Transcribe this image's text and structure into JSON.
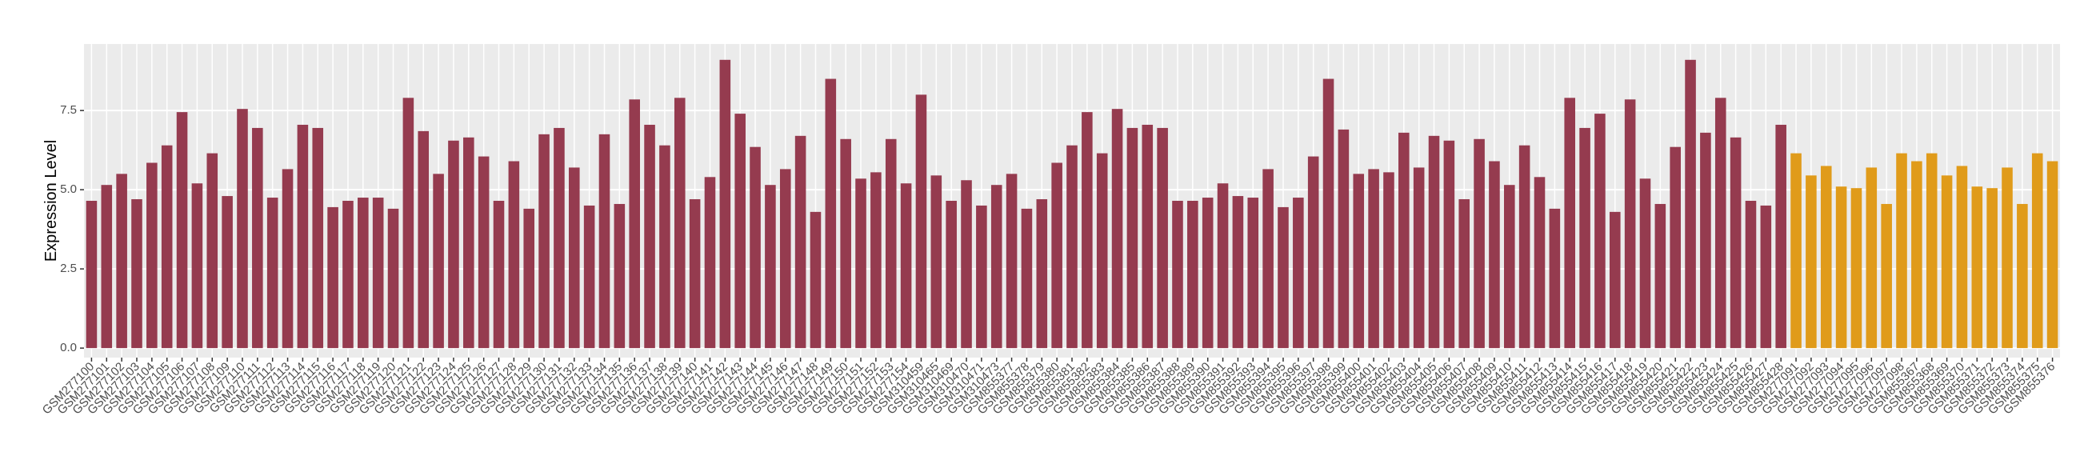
{
  "chart_data": {
    "type": "bar",
    "y_label": "Expression Level",
    "categories": [
      "GSM277100",
      "GSM277101",
      "GSM277102",
      "GSM277103",
      "GSM277104",
      "GSM277105",
      "GSM277106",
      "GSM277107",
      "GSM277108",
      "GSM277109",
      "GSM277110",
      "GSM277111",
      "GSM277112",
      "GSM277113",
      "GSM277114",
      "GSM277115",
      "GSM277116",
      "GSM277117",
      "GSM277118",
      "GSM277119",
      "GSM277120",
      "GSM277121",
      "GSM277122",
      "GSM277123",
      "GSM277124",
      "GSM277125",
      "GSM277126",
      "GSM277127",
      "GSM277128",
      "GSM277129",
      "GSM277130",
      "GSM277131",
      "GSM277132",
      "GSM277133",
      "GSM277134",
      "GSM277135",
      "GSM277136",
      "GSM277137",
      "GSM277138",
      "GSM277139",
      "GSM277140",
      "GSM277141",
      "GSM277142",
      "GSM277143",
      "GSM277144",
      "GSM277145",
      "GSM277146",
      "GSM277147",
      "GSM277148",
      "GSM277149",
      "GSM277150",
      "GSM277151",
      "GSM277152",
      "GSM277153",
      "GSM277154",
      "GSM310459",
      "GSM310465",
      "GSM310469",
      "GSM310470",
      "GSM310471",
      "GSM310473",
      "GSM855377",
      "GSM855378",
      "GSM855379",
      "GSM855380",
      "GSM855381",
      "GSM855382",
      "GSM855383",
      "GSM855384",
      "GSM855385",
      "GSM855386",
      "GSM855387",
      "GSM855388",
      "GSM855389",
      "GSM855390",
      "GSM855391",
      "GSM855392",
      "GSM855393",
      "GSM855394",
      "GSM855395",
      "GSM855396",
      "GSM855397",
      "GSM855398",
      "GSM855399",
      "GSM855400",
      "GSM855401",
      "GSM855402",
      "GSM855403",
      "GSM855404",
      "GSM855405",
      "GSM855406",
      "GSM855407",
      "GSM855408",
      "GSM855409",
      "GSM855410",
      "GSM855411",
      "GSM855412",
      "GSM855413",
      "GSM855414",
      "GSM855415",
      "GSM855416",
      "GSM855417",
      "GSM855418",
      "GSM855419",
      "GSM855420",
      "GSM855421",
      "GSM855422",
      "GSM855423",
      "GSM855424",
      "GSM855425",
      "GSM855426",
      "GSM855427",
      "GSM855428",
      "GSM277091",
      "GSM277092",
      "GSM277093",
      "GSM277094",
      "GSM277095",
      "GSM277096",
      "GSM277097",
      "GSM277098",
      "GSM855367",
      "GSM855368",
      "GSM855369",
      "GSM855370",
      "GSM855371",
      "GSM855372",
      "GSM855373",
      "GSM855374",
      "GSM855375",
      "GSM855376"
    ],
    "values": [
      4.65,
      5.15,
      5.5,
      4.7,
      5.85,
      6.4,
      7.45,
      5.2,
      6.15,
      4.8,
      7.55,
      6.95,
      4.75,
      5.65,
      7.05,
      6.95,
      4.45,
      4.65,
      4.75,
      4.75,
      4.4,
      7.9,
      6.85,
      5.5,
      6.55,
      6.65,
      6.05,
      4.65,
      5.9,
      4.4,
      6.75,
      6.95,
      5.7,
      4.5,
      6.75,
      4.55,
      7.85,
      7.05,
      6.4,
      7.9,
      4.7,
      5.4,
      9.1,
      7.4,
      6.35,
      5.15,
      5.65,
      6.7,
      4.3,
      8.5,
      6.6,
      5.35,
      5.55,
      6.6,
      5.2,
      8.0,
      5.45,
      4.65,
      5.3,
      4.5,
      5.15,
      5.5,
      4.4,
      4.7,
      5.85,
      6.4,
      7.45,
      6.15,
      7.55,
      6.95,
      7.05,
      6.95,
      4.65,
      4.65,
      4.75,
      5.2,
      4.8,
      4.75,
      5.65,
      4.45,
      4.75,
      6.05,
      8.5,
      6.9,
      5.5,
      5.65,
      5.55,
      6.8,
      5.7,
      6.7,
      6.55,
      4.7,
      6.6,
      5.9,
      5.15,
      6.4,
      5.4,
      4.4,
      7.9,
      6.95,
      7.4,
      4.3,
      7.85,
      5.35,
      4.55,
      6.35,
      9.1,
      6.8,
      7.9,
      6.65,
      4.65,
      4.5,
      7.05,
      6.15,
      5.45,
      5.75,
      5.1,
      5.05,
      5.7,
      4.55,
      6.15,
      5.9,
      6.15,
      5.45,
      5.75,
      5.1,
      5.05,
      5.7,
      4.55,
      6.15,
      5.9
    ],
    "colors": [
      "#953b4f",
      "#953b4f",
      "#953b4f",
      "#953b4f",
      "#953b4f",
      "#953b4f",
      "#953b4f",
      "#953b4f",
      "#953b4f",
      "#953b4f",
      "#953b4f",
      "#953b4f",
      "#953b4f",
      "#953b4f",
      "#953b4f",
      "#953b4f",
      "#953b4f",
      "#953b4f",
      "#953b4f",
      "#953b4f",
      "#953b4f",
      "#953b4f",
      "#953b4f",
      "#953b4f",
      "#953b4f",
      "#953b4f",
      "#953b4f",
      "#953b4f",
      "#953b4f",
      "#953b4f",
      "#953b4f",
      "#953b4f",
      "#953b4f",
      "#953b4f",
      "#953b4f",
      "#953b4f",
      "#953b4f",
      "#953b4f",
      "#953b4f",
      "#953b4f",
      "#953b4f",
      "#953b4f",
      "#953b4f",
      "#953b4f",
      "#953b4f",
      "#953b4f",
      "#953b4f",
      "#953b4f",
      "#953b4f",
      "#953b4f",
      "#953b4f",
      "#953b4f",
      "#953b4f",
      "#953b4f",
      "#953b4f",
      "#953b4f",
      "#953b4f",
      "#953b4f",
      "#953b4f",
      "#953b4f",
      "#953b4f",
      "#953b4f",
      "#953b4f",
      "#953b4f",
      "#953b4f",
      "#953b4f",
      "#953b4f",
      "#953b4f",
      "#953b4f",
      "#953b4f",
      "#953b4f",
      "#953b4f",
      "#953b4f",
      "#953b4f",
      "#953b4f",
      "#953b4f",
      "#953b4f",
      "#953b4f",
      "#953b4f",
      "#953b4f",
      "#953b4f",
      "#953b4f",
      "#953b4f",
      "#953b4f",
      "#953b4f",
      "#953b4f",
      "#953b4f",
      "#953b4f",
      "#953b4f",
      "#953b4f",
      "#953b4f",
      "#953b4f",
      "#953b4f",
      "#953b4f",
      "#953b4f",
      "#953b4f",
      "#953b4f",
      "#953b4f",
      "#953b4f",
      "#953b4f",
      "#953b4f",
      "#953b4f",
      "#953b4f",
      "#953b4f",
      "#953b4f",
      "#953b4f",
      "#953b4f",
      "#953b4f",
      "#953b4f",
      "#953b4f",
      "#953b4f",
      "#953b4f",
      "#953b4f",
      "#e09b1a",
      "#e09b1a",
      "#e09b1a",
      "#e09b1a",
      "#e09b1a",
      "#e09b1a",
      "#e09b1a",
      "#e09b1a",
      "#e09b1a",
      "#e09b1a",
      "#e09b1a",
      "#e09b1a",
      "#e09b1a",
      "#e09b1a",
      "#e09b1a",
      "#e09b1a",
      "#e09b1a",
      "#e09b1a"
    ],
    "ylim": [
      -0.3,
      9.6
    ],
    "yticks": [
      {
        "value": 0,
        "label": "0.0"
      },
      2.5,
      {
        "value": 5,
        "label": "5.0"
      },
      7.5
    ],
    "grid": true
  }
}
